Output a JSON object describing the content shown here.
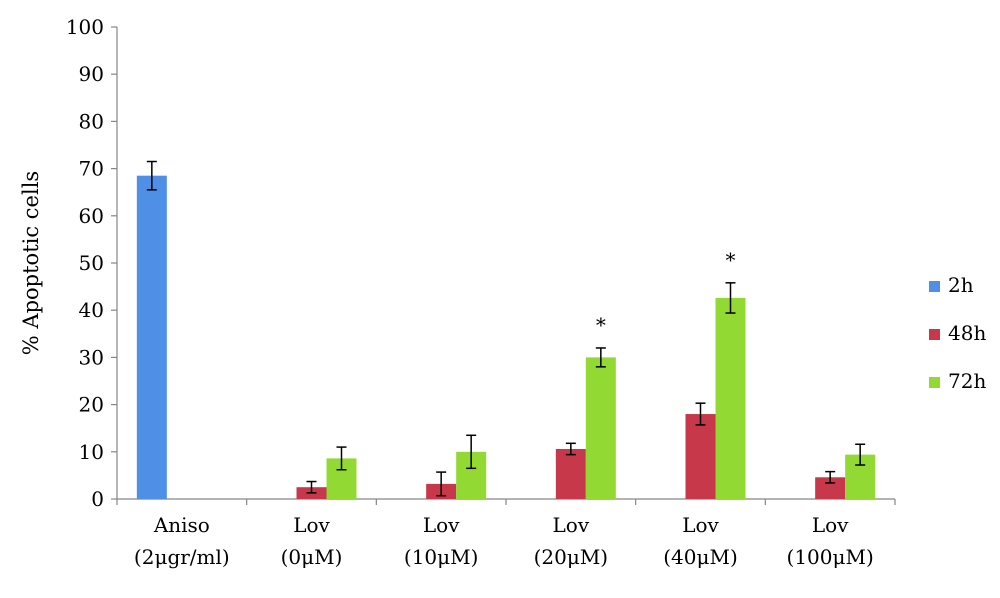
{
  "chart_data": {
    "type": "bar",
    "title": "",
    "xlabel": "",
    "ylabel": "% Apoptotic cells",
    "ylim": [
      0,
      100
    ],
    "yticks": [
      0,
      10,
      20,
      30,
      40,
      50,
      60,
      70,
      80,
      90,
      100
    ],
    "grid": false,
    "legend_position": "right",
    "categories": [
      [
        "Aniso",
        "(2μgr/ml)"
      ],
      [
        "Lov",
        "(0μM)"
      ],
      [
        "Lov",
        "(10μM)"
      ],
      [
        "Lov",
        "(20μM)"
      ],
      [
        "Lov",
        "(40μM)"
      ],
      [
        "Lov",
        "(100μM)"
      ]
    ],
    "series": [
      {
        "name": "2h",
        "color": "#4f8fe6",
        "values": [
          68.5,
          null,
          null,
          null,
          null,
          null
        ],
        "errors": [
          3.0,
          null,
          null,
          null,
          null,
          null
        ]
      },
      {
        "name": "48h",
        "color": "#c6384a",
        "values": [
          null,
          2.5,
          3.2,
          10.6,
          18.0,
          4.6
        ],
        "errors": [
          null,
          1.2,
          2.5,
          1.2,
          2.3,
          1.2
        ]
      },
      {
        "name": "72h",
        "color": "#92d933",
        "values": [
          null,
          8.6,
          10.0,
          30.0,
          42.6,
          9.4
        ],
        "errors": [
          null,
          2.4,
          3.5,
          2.0,
          3.2,
          2.2
        ]
      }
    ],
    "annotations": [
      {
        "category_index": 3,
        "series": "72h",
        "text": "*"
      },
      {
        "category_index": 4,
        "series": "72h",
        "text": "*"
      }
    ]
  }
}
